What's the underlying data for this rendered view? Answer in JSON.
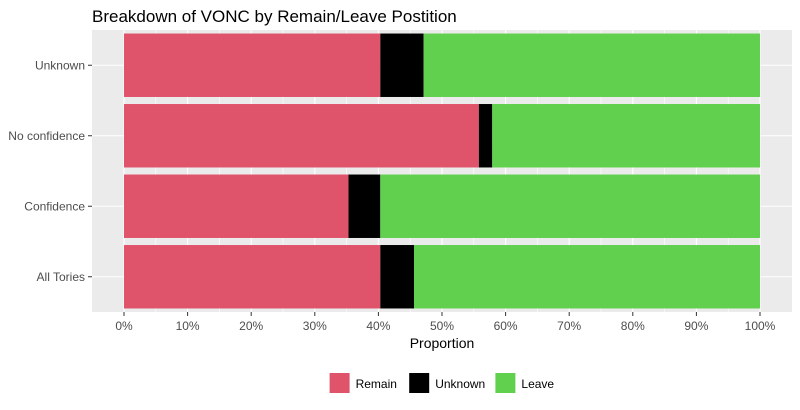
{
  "chart_data": {
    "type": "bar",
    "orientation": "horizontal",
    "stacked": true,
    "title": "Breakdown of VONC by Remain/Leave Postition",
    "xlabel": "Proportion",
    "ylabel": "",
    "xlim": [
      0,
      1
    ],
    "x_ticks": [
      "0%",
      "10%",
      "20%",
      "30%",
      "40%",
      "50%",
      "60%",
      "70%",
      "80%",
      "90%",
      "100%"
    ],
    "categories": [
      "Unknown",
      "No confidence",
      "Confidence",
      "All Tories"
    ],
    "series": [
      {
        "name": "Remain",
        "color": "#df536b",
        "values": [
          0.403,
          0.558,
          0.353,
          0.403
        ]
      },
      {
        "name": "Unknown",
        "color": "#000000",
        "values": [
          0.068,
          0.021,
          0.05,
          0.053
        ]
      },
      {
        "name": "Leave",
        "color": "#61d04f",
        "values": [
          0.529,
          0.421,
          0.597,
          0.544
        ]
      }
    ],
    "legend_position": "bottom",
    "grid": true,
    "panel_background": "#ebebeb"
  }
}
